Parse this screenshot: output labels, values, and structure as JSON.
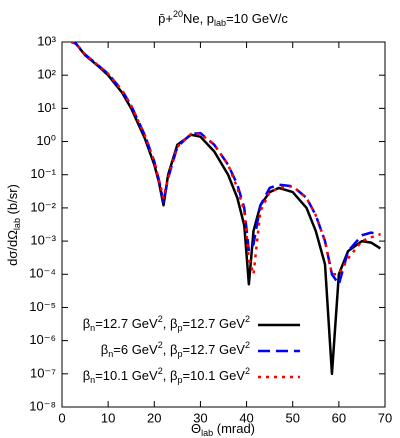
{
  "chart_data": {
    "type": "line",
    "title": [
      "p̄+",
      "20",
      "Ne, p",
      "lab",
      "=10 GeV/c"
    ],
    "x_label": [
      "Θ",
      "lab",
      " (mrad)"
    ],
    "y_label": [
      "dσ/dΩ",
      "lab",
      " (b/sr)"
    ],
    "xlim": [
      0,
      70
    ],
    "xticks": [
      0,
      10,
      20,
      30,
      40,
      50,
      60,
      70
    ],
    "ylim": [
      1e-08,
      1000
    ],
    "y_scale": "log",
    "yticks": [
      {
        "value": 1e-08,
        "label": "10⁻⁸"
      },
      {
        "value": 1e-07,
        "label": "10⁻⁷"
      },
      {
        "value": 1e-06,
        "label": "10⁻⁶"
      },
      {
        "value": 1e-05,
        "label": "10⁻⁵"
      },
      {
        "value": 0.0001,
        "label": "10⁻⁴"
      },
      {
        "value": 0.001,
        "label": "10⁻³"
      },
      {
        "value": 0.01,
        "label": "10⁻²"
      },
      {
        "value": 0.1,
        "label": "10⁻¹"
      },
      {
        "value": 1,
        "label": "10⁰"
      },
      {
        "value": 10,
        "label": "10¹"
      },
      {
        "value": 100,
        "label": "10²"
      },
      {
        "value": 1000,
        "label": "10³"
      }
    ],
    "grid": false,
    "legend": "lower left",
    "x": [
      2,
      3,
      5,
      8,
      10,
      13,
      15,
      18,
      20,
      21,
      22,
      23,
      25,
      28,
      30,
      33,
      36,
      38,
      39.5,
      40.5,
      41.5,
      43,
      45,
      47,
      50,
      53,
      55,
      57,
      58.5,
      60,
      62,
      65,
      67,
      69
    ],
    "series": [
      {
        "name": [
          "β",
          "n",
          "=12.7 GeV",
          "2",
          ", β",
          "p",
          "=12.7 GeV",
          "2"
        ],
        "color": "#000000",
        "style": "solid",
        "values": [
          1000,
          900,
          400,
          180,
          100,
          30,
          10,
          1.2,
          0.2,
          0.06,
          0.012,
          0.1,
          0.8,
          1.6,
          1.4,
          0.5,
          0.1,
          0.02,
          0.003,
          5e-05,
          0.002,
          0.012,
          0.03,
          0.04,
          0.03,
          0.01,
          0.002,
          0.0002,
          1e-07,
          0.0001,
          0.0005,
          0.001,
          0.0009,
          0.0006
        ]
      },
      {
        "name": [
          "β",
          "n",
          "=6 GeV",
          "2",
          ", β",
          "p",
          "=12.7 GeV",
          "2"
        ],
        "color": "#0000ff",
        "style": "dashed",
        "values": [
          1000,
          900,
          420,
          190,
          110,
          35,
          12,
          1.5,
          0.25,
          0.07,
          0.015,
          0.08,
          0.7,
          1.7,
          1.8,
          0.8,
          0.2,
          0.05,
          0.01,
          0.0005,
          0.0008,
          0.012,
          0.04,
          0.05,
          0.045,
          0.02,
          0.006,
          0.001,
          0.0001,
          5e-05,
          0.0005,
          0.0015,
          0.0018,
          0.0016
        ]
      },
      {
        "name": [
          "β",
          "n",
          "=10.1 GeV",
          "2",
          ", β",
          "p",
          "=10.1 GeV",
          "2"
        ],
        "color": "#ff0000",
        "style": "dotted",
        "values": [
          1000,
          900,
          420,
          190,
          110,
          35,
          12,
          1.5,
          0.25,
          0.07,
          0.02,
          0.08,
          0.7,
          1.7,
          1.7,
          0.8,
          0.2,
          0.04,
          0.008,
          0.0003,
          0.0001,
          0.008,
          0.03,
          0.04,
          0.045,
          0.02,
          0.006,
          0.001,
          0.0001,
          0.0001,
          0.0003,
          0.001,
          0.0013,
          0.0016
        ]
      }
    ]
  }
}
